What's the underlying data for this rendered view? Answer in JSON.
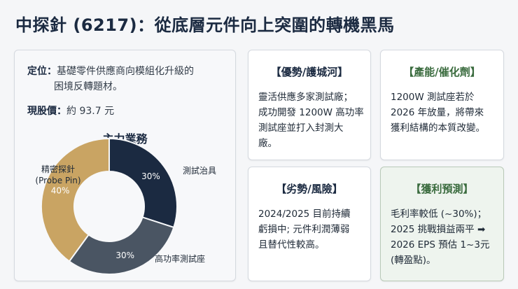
{
  "title": "中探針 (6217)：從底層元件向上突圍的轉機黑馬",
  "left_card": {
    "position_label": "定位：",
    "position_line1": "基礎零件供應商向模組化升級的",
    "position_line2": "困境反轉題材。",
    "price_label": "現股價：",
    "price_value": "約 93.7 元",
    "business_title": "主力業務"
  },
  "chart_data": {
    "type": "pie",
    "title": "主力業務",
    "slices": [
      {
        "name": "測試治具",
        "value": 30,
        "label": "30%",
        "color": "#1b2a41"
      },
      {
        "name": "高功率測試座",
        "value": 30,
        "label": "30%",
        "color": "#4a5563"
      },
      {
        "name": "精密探針 (Probe Pin)",
        "name_line1": "精密探針",
        "name_line2": "(Probe Pin)",
        "value": 40,
        "label": "40%",
        "color": "#c9a463"
      }
    ]
  },
  "advantage": {
    "title": "【優勢/護城河】",
    "lines": [
      "靈活供應多家測試廠；",
      "成功開發 1200W 高功率",
      "測試座並打入封測大",
      "廠。"
    ]
  },
  "capacity": {
    "title": "【產能/催化劑】",
    "lines": [
      "1200W 測試座若於",
      "2026 年放量，將帶來",
      "獲利結構的本質改變。"
    ]
  },
  "risk": {
    "title": "【劣勢/風險】",
    "lines": [
      "2024/2025 目前持續",
      "虧損中; 元件利潤薄弱",
      "且替代性較高。"
    ]
  },
  "profit": {
    "title": "【獲利預測】",
    "lines": [
      "毛利率較低 (~30%)；",
      "2025 挑戰損益兩平 ➡",
      "2026 EPS 預估 1~3元",
      "(轉盈點)。"
    ]
  },
  "colors": {
    "navy": "#1b2a41",
    "slate": "#4a5563",
    "gold": "#c9a463",
    "green_title": "#3a6b3e",
    "green_card": "#eef4ee"
  }
}
